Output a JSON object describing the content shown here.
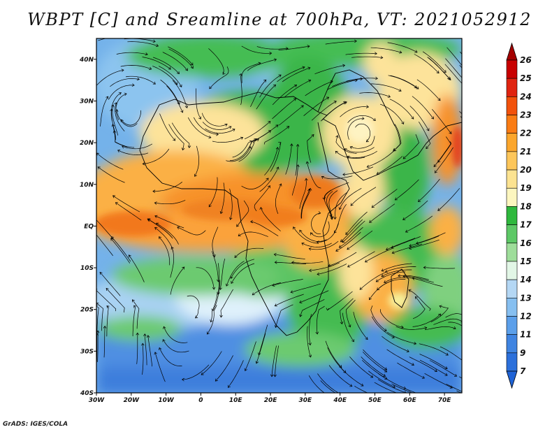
{
  "title": "WBPT [C] and Sreamline at 700hPa, VT: 2021052912",
  "footer": "GrADS: IGES/COLA",
  "map": {
    "lon_range": [
      -30,
      75
    ],
    "lat_range": [
      -40,
      45
    ],
    "x_ticks": [
      {
        "value": -30,
        "label": "30W"
      },
      {
        "value": -20,
        "label": "20W"
      },
      {
        "value": -10,
        "label": "10W"
      },
      {
        "value": 0,
        "label": "0"
      },
      {
        "value": 10,
        "label": "10E"
      },
      {
        "value": 20,
        "label": "20E"
      },
      {
        "value": 30,
        "label": "30E"
      },
      {
        "value": 40,
        "label": "40E"
      },
      {
        "value": 50,
        "label": "50E"
      },
      {
        "value": 60,
        "label": "60E"
      },
      {
        "value": 70,
        "label": "70E"
      }
    ],
    "y_ticks": [
      {
        "value": 40,
        "label": "40N"
      },
      {
        "value": 30,
        "label": "30N"
      },
      {
        "value": 20,
        "label": "20N"
      },
      {
        "value": 10,
        "label": "10N"
      },
      {
        "value": 0,
        "label": "EQ"
      },
      {
        "value": -10,
        "label": "10S"
      },
      {
        "value": -20,
        "label": "20S"
      },
      {
        "value": -30,
        "label": "30S"
      },
      {
        "value": -40,
        "label": "40S"
      }
    ]
  },
  "colorbar": {
    "levels": [
      "26",
      "25",
      "24",
      "23",
      "22",
      "21",
      "20",
      "19",
      "18",
      "17",
      "16",
      "15",
      "14",
      "13",
      "12",
      "11",
      "9",
      "7"
    ],
    "top_color": "#a40000",
    "bottom_color": "#1f63d6",
    "colors": [
      "#c80000",
      "#e02410",
      "#f2520c",
      "#fa7c14",
      "#fba62c",
      "#fdc65a",
      "#fce391",
      "#fcf6bf",
      "#2eb83d",
      "#5dc866",
      "#9edd9a",
      "#e2f6e6",
      "#b4d7f4",
      "#86bff0",
      "#5b9fea",
      "#3f84e1",
      "#2c70db"
    ]
  }
}
